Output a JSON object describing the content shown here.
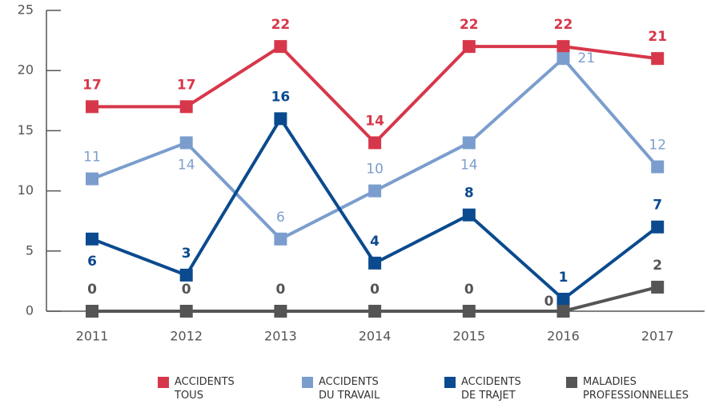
{
  "chart_data": {
    "type": "line",
    "categories": [
      "2011",
      "2012",
      "2013",
      "2014",
      "2015",
      "2016",
      "2017"
    ],
    "ylim": [
      0,
      25
    ],
    "yticks": [
      0,
      5,
      10,
      15,
      20,
      25
    ],
    "legend": "bottom",
    "series": [
      {
        "name": "ACCIDENTS\nTOUS",
        "color": "#d7374a",
        "values": [
          17,
          17,
          22,
          14,
          22,
          22,
          21
        ]
      },
      {
        "name": "ACCIDENTS\nDU TRAVAIL",
        "color": "#7b9dce",
        "values": [
          11,
          14,
          6,
          10,
          14,
          21,
          12
        ]
      },
      {
        "name": "ACCIDENTS\nDE TRAJET",
        "color": "#0b4a8e",
        "values": [
          6,
          3,
          16,
          4,
          8,
          1,
          7
        ]
      },
      {
        "name": "MALADIES\nPROFESSIONNELLES",
        "color": "#555555",
        "values": [
          0,
          0,
          0,
          0,
          0,
          0,
          2
        ]
      }
    ]
  }
}
